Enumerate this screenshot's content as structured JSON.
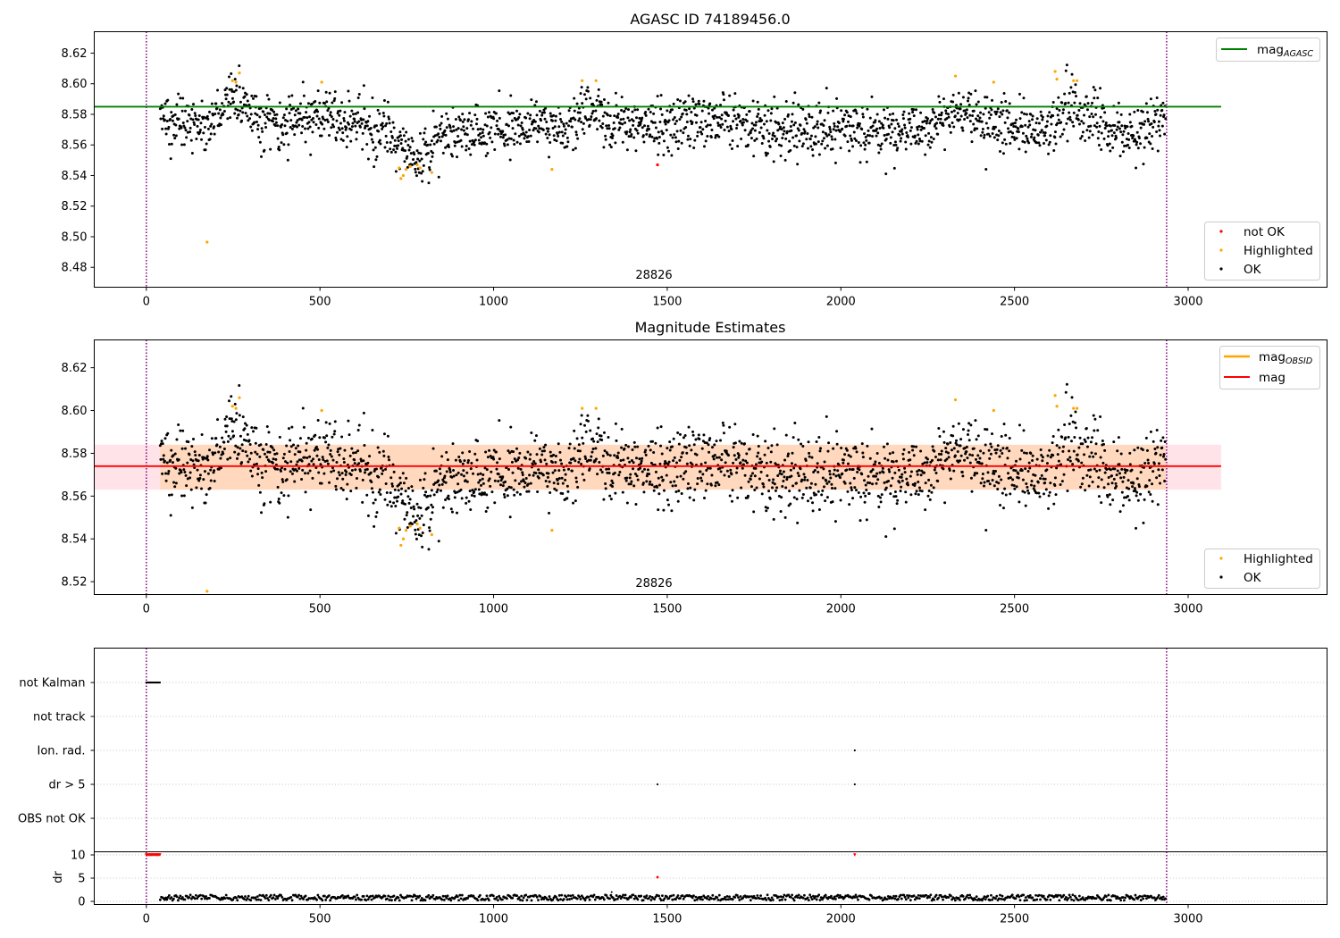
{
  "colors": {
    "ok": "#000000",
    "highlighted": "#ffa500",
    "not_ok": "#ff0000",
    "agasc_line": "#008000",
    "obsid_line": "#ffa500",
    "mag_line": "#ff0000",
    "band_fill": "#ffc0cb",
    "vline": "#800080",
    "grid": "#b0b0b0"
  },
  "chart_data": [
    {
      "type": "scatter",
      "title": "AGASC ID 74189456.0",
      "annotation": "28826",
      "xlim": [
        -150,
        3400
      ],
      "ylim": [
        8.467,
        8.634
      ],
      "x_ticks": [
        0,
        500,
        1000,
        1500,
        2000,
        2500,
        3000
      ],
      "y_ticks": [
        8.48,
        8.5,
        8.52,
        8.54,
        8.56,
        8.58,
        8.6,
        8.62
      ],
      "x_range": [
        40,
        2935
      ],
      "ok_trend": [
        [
          40,
          8.576
        ],
        [
          180,
          8.573
        ],
        [
          250,
          8.592
        ],
        [
          330,
          8.573
        ],
        [
          500,
          8.579
        ],
        [
          600,
          8.575
        ],
        [
          700,
          8.566
        ],
        [
          760,
          8.553
        ],
        [
          820,
          8.561
        ],
        [
          900,
          8.57
        ],
        [
          1000,
          8.569
        ],
        [
          1100,
          8.574
        ],
        [
          1200,
          8.569
        ],
        [
          1260,
          8.584
        ],
        [
          1350,
          8.575
        ],
        [
          1500,
          8.573
        ],
        [
          1650,
          8.579
        ],
        [
          1800,
          8.568
        ],
        [
          2000,
          8.571
        ],
        [
          2200,
          8.566
        ],
        [
          2330,
          8.582
        ],
        [
          2450,
          8.575
        ],
        [
          2600,
          8.567
        ],
        [
          2650,
          8.587
        ],
        [
          2750,
          8.572
        ],
        [
          2850,
          8.566
        ],
        [
          2935,
          8.58
        ]
      ],
      "series": [
        {
          "name": "OK",
          "count": 2000,
          "scatter": 0.0085
        },
        {
          "name": "Highlighted",
          "points": [
            [
              175,
              8.4965
            ],
            [
              248,
              8.602
            ],
            [
              258,
              8.601
            ],
            [
              268,
              8.607
            ],
            [
              505,
              8.601
            ],
            [
              728,
              8.545
            ],
            [
              733,
              8.538
            ],
            [
              740,
              8.54
            ],
            [
              748,
              8.544
            ],
            [
              760,
              8.546
            ],
            [
              780,
              8.547
            ],
            [
              788,
              8.545
            ],
            [
              822,
              8.542
            ],
            [
              1168,
              8.544
            ],
            [
              1255,
              8.602
            ],
            [
              1295,
              8.602
            ],
            [
              2330,
              8.605
            ],
            [
              2440,
              8.601
            ],
            [
              2617,
              8.608
            ],
            [
              2622,
              8.603
            ],
            [
              2670,
              8.602
            ],
            [
              2680,
              8.602
            ]
          ]
        },
        {
          "name": "not OK",
          "points": [
            [
              1472,
              8.547
            ]
          ]
        }
      ],
      "lines": [
        {
          "name": "mag_AGASC",
          "y": 8.585,
          "x": [
            -150,
            3095
          ]
        }
      ],
      "vlines": [
        0,
        2938
      ],
      "legend_top": [
        {
          "label": "mag",
          "sub": "AGASC"
        }
      ],
      "legend_bottom": [
        "not OK",
        "Highlighted",
        "OK"
      ]
    },
    {
      "type": "scatter",
      "title": "Magnitude Estimates",
      "annotation": "28826",
      "xlim": [
        -150,
        3400
      ],
      "ylim": [
        8.514,
        8.633
      ],
      "x_ticks": [
        0,
        500,
        1000,
        1500,
        2000,
        2500,
        3000
      ],
      "y_ticks": [
        8.52,
        8.54,
        8.56,
        8.58,
        8.6,
        8.62
      ],
      "band": {
        "y0": 8.563,
        "y1": 8.584,
        "x": [
          -150,
          3095
        ]
      },
      "series": [
        {
          "name": "OK",
          "same_as_first_panel": true
        },
        {
          "name": "Highlighted",
          "points": [
            [
              175,
              8.5155
            ],
            [
              248,
              8.602
            ],
            [
              258,
              8.601
            ],
            [
              268,
              8.606
            ],
            [
              505,
              8.6
            ],
            [
              728,
              8.545
            ],
            [
              733,
              8.537
            ],
            [
              740,
              8.54
            ],
            [
              748,
              8.544
            ],
            [
              760,
              8.546
            ],
            [
              780,
              8.547
            ],
            [
              788,
              8.545
            ],
            [
              822,
              8.542
            ],
            [
              1168,
              8.544
            ],
            [
              1255,
              8.601
            ],
            [
              1295,
              8.601
            ],
            [
              2330,
              8.605
            ],
            [
              2440,
              8.6
            ],
            [
              2617,
              8.607
            ],
            [
              2622,
              8.602
            ],
            [
              2670,
              8.601
            ],
            [
              2680,
              8.601
            ]
          ]
        }
      ],
      "lines": [
        {
          "name": "mag",
          "y": 8.574,
          "x": [
            -150,
            3095
          ]
        },
        {
          "name": "mag_OBSID",
          "y": 8.574,
          "x": [
            40,
            2935
          ]
        }
      ],
      "vlines": [
        0,
        2938
      ],
      "legend_top": [
        {
          "label": "mag",
          "sub": "OBSID"
        },
        {
          "label": "mag",
          "sub": ""
        }
      ],
      "legend_bottom": [
        "Highlighted",
        "OK"
      ]
    },
    {
      "type": "scatter",
      "xlim": [
        -150,
        3400
      ],
      "categories": [
        "not Kalman",
        "not track",
        "Ion. rad.",
        "dr > 5",
        "OBS not OK"
      ],
      "flag_points": [
        {
          "category": "not Kalman",
          "x": [
            0,
            40
          ]
        },
        {
          "category": "Ion. rad.",
          "x": [
            2040
          ]
        },
        {
          "category": "dr > 5",
          "x": [
            1472,
            2040
          ]
        }
      ],
      "vlines": [
        0,
        2938
      ]
    },
    {
      "type": "scatter",
      "ylabel": "dr",
      "xlim": [
        -150,
        3400
      ],
      "ylim": [
        -0.5,
        10.5
      ],
      "x_ticks": [
        0,
        500,
        1000,
        1500,
        2000,
        2500,
        3000
      ],
      "y_ticks": [
        0,
        5,
        10
      ],
      "clipped_at": 10,
      "not_ok_points": [
        [
          1472,
          5.2
        ]
      ],
      "clipped_ranges": [
        [
          0,
          40
        ],
        [
          2040,
          2040
        ]
      ],
      "ok_range": [
        40,
        2935
      ],
      "ok_level": [
        0.2,
        1.4
      ],
      "vlines": [
        0,
        2938
      ]
    }
  ]
}
